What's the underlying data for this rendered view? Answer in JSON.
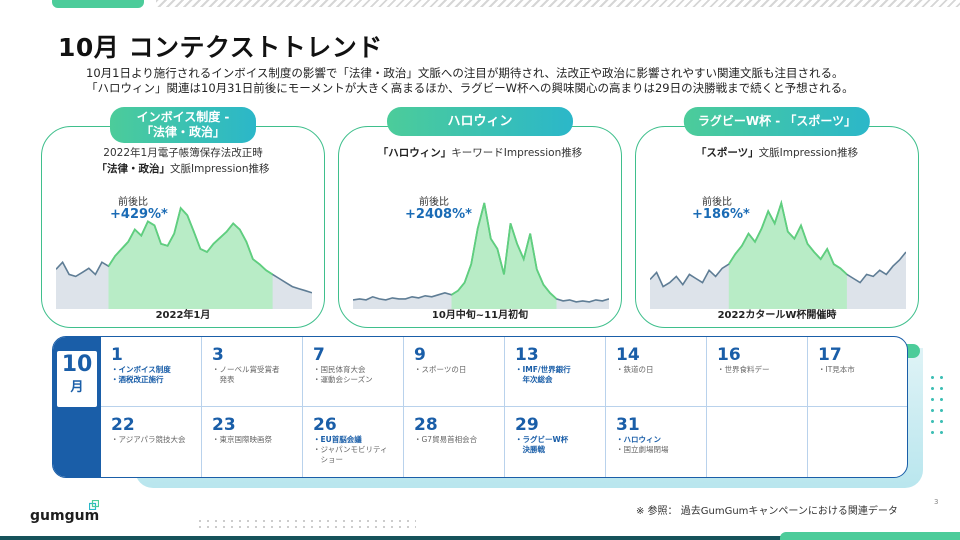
{
  "title": "10月 コンテクストトレンド",
  "intro": {
    "line1": "10月1日より施行されるインボイス制度の影響で「法律・政治」文脈への注目が期待され、法改正や政治に影響されやすい関連文脈も注目される。",
    "line2": "「ハロウィン」関連は10月31日前後にモーメントが大きく高まるほか、ラグビーW杯への興味関心の高まりは29日の決勝戦まで続くと予想される。"
  },
  "cards": [
    {
      "label_line1": "インボイス制度 -",
      "label_line2": "「法律・政治」",
      "sub_line1": "2022年1月電子帳簿保存法改正時",
      "sub_line2_bold": "「法律・政治」",
      "sub_line2_rest": "文脈Impression推移",
      "ratio_label": "前後比",
      "ratio_value": "+429%*",
      "caption": "2022年1月"
    },
    {
      "label_line1": "ハロウィン",
      "sub_line1_bold": "「ハロウィン」",
      "sub_line1_rest": "キーワードImpression推移",
      "ratio_label": "前後比",
      "ratio_value": "+2408%*",
      "caption": "10月中旬~11月初旬"
    },
    {
      "label_line1": "ラグビーW杯 - 「スポーツ」",
      "sub_line1_bold": "「スポーツ」",
      "sub_line1_rest": "文脈Impression推移",
      "ratio_label": "前後比",
      "ratio_value": "+186%*",
      "caption": "2022カタールW杯開催時"
    }
  ],
  "calendar": {
    "month": "10",
    "unit": "月",
    "row1": [
      {
        "day": "1",
        "events": [
          {
            "text": "・インボイス制度",
            "hl": true
          },
          {
            "text": "・酒税改正施行",
            "hl": true
          }
        ]
      },
      {
        "day": "3",
        "events": [
          {
            "text": "・ノーベル賞受賞者",
            "hl": false
          },
          {
            "text": "　発表",
            "hl": false
          }
        ]
      },
      {
        "day": "7",
        "events": [
          {
            "text": "・国民体育大会",
            "hl": false
          },
          {
            "text": "・運動会シーズン",
            "hl": false
          }
        ]
      },
      {
        "day": "9",
        "events": [
          {
            "text": "・スポーツの日",
            "hl": false
          }
        ]
      },
      {
        "day": "13",
        "events": [
          {
            "text": "・IMF/世界銀行",
            "hl": true
          },
          {
            "text": "　年次総会",
            "hl": true
          }
        ]
      },
      {
        "day": "14",
        "events": [
          {
            "text": "・鉄道の日",
            "hl": false
          }
        ]
      },
      {
        "day": "16",
        "events": [
          {
            "text": "・世界食料デー",
            "hl": false
          }
        ]
      },
      {
        "day": "17",
        "events": [
          {
            "text": "・IT見本市",
            "hl": false
          }
        ]
      }
    ],
    "row2": [
      {
        "day": "22",
        "events": [
          {
            "text": "・アジアパラ競技大会",
            "hl": false
          }
        ]
      },
      {
        "day": "23",
        "events": [
          {
            "text": "・東京国際映画祭",
            "hl": false
          }
        ]
      },
      {
        "day": "26",
        "events": [
          {
            "text": "・EU首脳会議",
            "hl": true
          },
          {
            "text": "・ジャパンモビリティ",
            "hl": false
          },
          {
            "text": "　ショー",
            "hl": false
          }
        ]
      },
      {
        "day": "28",
        "events": [
          {
            "text": "・G7貿易首相会合",
            "hl": false
          }
        ]
      },
      {
        "day": "29",
        "events": [
          {
            "text": "・ラグビーW杯",
            "hl": true
          },
          {
            "text": "　決勝戦",
            "hl": true
          }
        ]
      },
      {
        "day": "31",
        "events": [
          {
            "text": "・ハロウィン",
            "hl": true
          },
          {
            "text": "・国立劇場閉場",
            "hl": false
          }
        ]
      },
      {
        "day": "",
        "events": []
      },
      {
        "day": "",
        "events": []
      }
    ]
  },
  "footer": {
    "logo": "gumgum",
    "footnote": "※ 参照： 過去GumGumキャンペーンにおける関連データ",
    "page": "3"
  },
  "colors": {
    "accent": "#4ccc9a",
    "blue": "#1a5ea8",
    "teal": "#2bb7c9"
  },
  "chart_data": [
    {
      "type": "area",
      "title": "「法律・政治」文脈Impression推移",
      "xlabel": "2022年1月",
      "values": [
        0.35,
        0.42,
        0.3,
        0.28,
        0.32,
        0.36,
        0.3,
        0.42,
        0.38,
        0.48,
        0.55,
        0.62,
        0.74,
        0.68,
        0.82,
        0.78,
        0.6,
        0.58,
        0.7,
        0.95,
        0.88,
        0.72,
        0.55,
        0.52,
        0.6,
        0.66,
        0.72,
        0.8,
        0.74,
        0.62,
        0.45,
        0.4,
        0.34,
        0.3,
        0.26,
        0.22,
        0.18,
        0.16,
        0.14,
        0.12
      ],
      "highlight_range": [
        8,
        33
      ]
    },
    {
      "type": "area",
      "title": "「ハロウィン」キーワードImpression推移",
      "xlabel": "10月中旬~11月初旬",
      "values": [
        0.05,
        0.06,
        0.05,
        0.08,
        0.06,
        0.05,
        0.07,
        0.06,
        0.06,
        0.08,
        0.07,
        0.09,
        0.08,
        0.1,
        0.12,
        0.1,
        0.14,
        0.22,
        0.4,
        0.75,
        1.0,
        0.65,
        0.55,
        0.3,
        0.8,
        0.6,
        0.45,
        0.7,
        0.35,
        0.2,
        0.12,
        0.06,
        0.04,
        0.05,
        0.03,
        0.04,
        0.03,
        0.05,
        0.04,
        0.06
      ],
      "highlight_range": [
        15,
        31
      ]
    },
    {
      "type": "area",
      "title": "「スポーツ」文脈Impression推移",
      "xlabel": "2022カタールW杯開催時",
      "values": [
        0.25,
        0.32,
        0.18,
        0.22,
        0.28,
        0.2,
        0.3,
        0.26,
        0.22,
        0.34,
        0.28,
        0.36,
        0.4,
        0.5,
        0.58,
        0.7,
        0.62,
        0.75,
        0.92,
        0.8,
        1.0,
        0.72,
        0.65,
        0.78,
        0.6,
        0.52,
        0.45,
        0.55,
        0.4,
        0.36,
        0.3,
        0.26,
        0.22,
        0.3,
        0.28,
        0.34,
        0.3,
        0.38,
        0.44,
        0.52
      ],
      "highlight_range": [
        12,
        30
      ]
    }
  ]
}
